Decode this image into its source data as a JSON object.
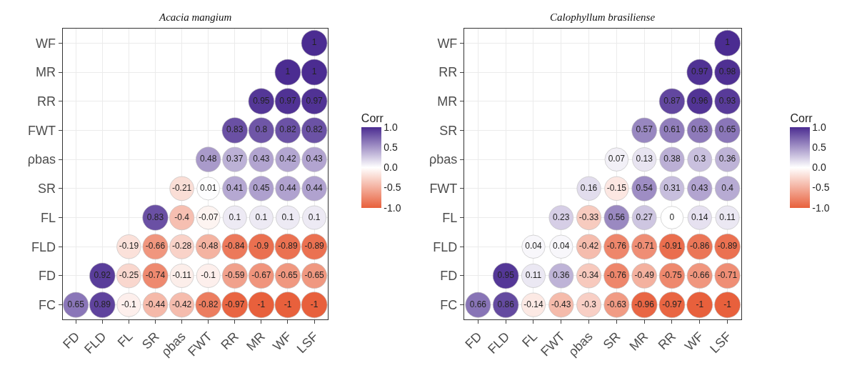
{
  "chart_data": [
    {
      "type": "heatmap",
      "title": "Acacia mangium",
      "clabel": "Corr",
      "grid": true,
      "data_labels": true,
      "categories": [
        "FD",
        "FLD",
        "FL",
        "SR",
        "ρbas",
        "FWT",
        "RR",
        "MR",
        "WF",
        "LSF"
      ],
      "y_categories": [
        "WF",
        "MR",
        "RR",
        "FWT",
        "ρbas",
        "SR",
        "FL",
        "FLD",
        "FD",
        "FC"
      ],
      "cells": [
        [
          null,
          null,
          null,
          null,
          null,
          null,
          null,
          null,
          null,
          1
        ],
        [
          null,
          null,
          null,
          null,
          null,
          null,
          null,
          null,
          1,
          1
        ],
        [
          null,
          null,
          null,
          null,
          null,
          null,
          null,
          0.95,
          0.97,
          0.97
        ],
        [
          null,
          null,
          null,
          null,
          null,
          null,
          0.83,
          0.8,
          0.82,
          0.82
        ],
        [
          null,
          null,
          null,
          null,
          null,
          0.48,
          0.37,
          0.43,
          0.42,
          0.43
        ],
        [
          null,
          null,
          null,
          null,
          -0.21,
          0.01,
          0.41,
          0.45,
          0.44,
          0.44
        ],
        [
          null,
          null,
          null,
          0.83,
          -0.4,
          -0.07,
          0.1,
          0.1,
          0.1,
          0.1
        ],
        [
          null,
          null,
          -0.19,
          -0.66,
          -0.28,
          -0.48,
          -0.84,
          -0.9,
          -0.89,
          -0.89
        ],
        [
          null,
          0.92,
          -0.25,
          -0.74,
          -0.11,
          -0.1,
          -0.59,
          -0.67,
          -0.65,
          -0.65
        ],
        [
          0.65,
          0.89,
          -0.1,
          -0.44,
          -0.42,
          -0.82,
          -0.97,
          -1,
          -1,
          -1
        ]
      ],
      "clim": [
        -1,
        1
      ],
      "cticks": [
        {
          "value": 1,
          "label": "1.0"
        },
        {
          "value": 0.5,
          "label": "0.5"
        },
        {
          "value": 0,
          "label": "0.0"
        },
        {
          "value": -0.5,
          "label": "-0.5"
        },
        {
          "value": -1,
          "label": "-1.0"
        }
      ]
    },
    {
      "type": "heatmap",
      "title": "Calophyllum brasiliense",
      "clabel": "Corr",
      "grid": true,
      "data_labels": true,
      "categories": [
        "FD",
        "FLD",
        "FL",
        "FWT",
        "ρbas",
        "SR",
        "MR",
        "RR",
        "WF",
        "LSF"
      ],
      "y_categories": [
        "WF",
        "RR",
        "MR",
        "SR",
        "ρbas",
        "FWT",
        "FL",
        "FLD",
        "FD",
        "FC"
      ],
      "cells": [
        [
          null,
          null,
          null,
          null,
          null,
          null,
          null,
          null,
          null,
          1
        ],
        [
          null,
          null,
          null,
          null,
          null,
          null,
          null,
          null,
          0.97,
          0.98
        ],
        [
          null,
          null,
          null,
          null,
          null,
          null,
          null,
          0.87,
          0.96,
          0.93
        ],
        [
          null,
          null,
          null,
          null,
          null,
          null,
          0.57,
          0.61,
          0.63,
          0.65
        ],
        [
          null,
          null,
          null,
          null,
          null,
          0.07,
          0.13,
          0.38,
          0.3,
          0.36
        ],
        [
          null,
          null,
          null,
          null,
          0.16,
          -0.15,
          0.54,
          0.31,
          0.43,
          0.4
        ],
        [
          null,
          null,
          null,
          0.23,
          -0.33,
          0.56,
          0.27,
          0,
          0.14,
          0.11
        ],
        [
          null,
          null,
          0.04,
          0.04,
          -0.42,
          -0.76,
          -0.71,
          -0.91,
          -0.86,
          -0.89
        ],
        [
          null,
          0.95,
          0.11,
          0.36,
          -0.34,
          -0.76,
          -0.49,
          -0.75,
          -0.66,
          -0.71
        ],
        [
          0.66,
          0.86,
          -0.14,
          -0.43,
          -0.3,
          -0.63,
          -0.96,
          -0.97,
          -1,
          -1
        ]
      ],
      "clim": [
        -1,
        1
      ],
      "cticks": [
        {
          "value": 1,
          "label": "1.0"
        },
        {
          "value": 0.5,
          "label": "0.5"
        },
        {
          "value": 0,
          "label": "0.0"
        },
        {
          "value": -0.5,
          "label": "-0.5"
        },
        {
          "value": -1,
          "label": "-1.0"
        }
      ]
    }
  ]
}
